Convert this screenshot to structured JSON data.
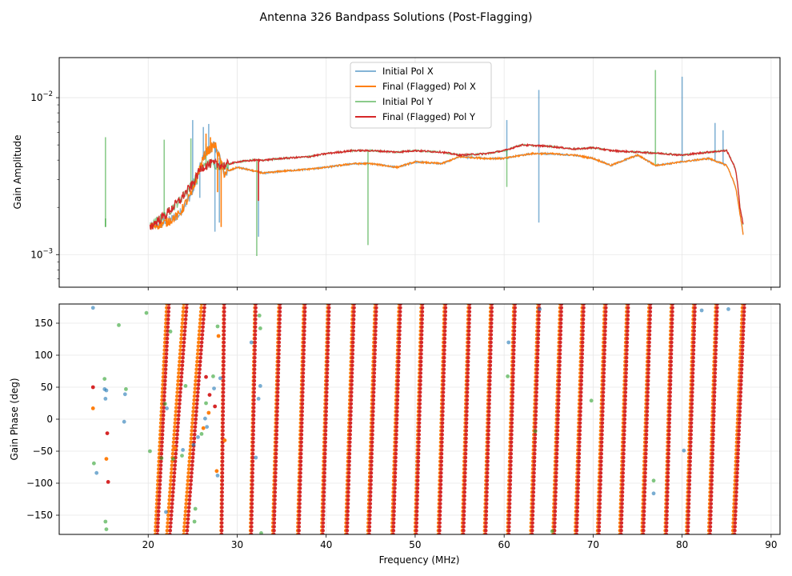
{
  "figure": {
    "title": "Antenna 326 Bandpass Solutions (Post-Flagging)"
  },
  "chart_data": [
    {
      "type": "line",
      "panel": "amplitude",
      "ylabel": "Gain Amplitude",
      "xlabel": "",
      "xlim": [
        10,
        91
      ],
      "yscale": "log",
      "ylim": [
        0.00062,
        0.018
      ],
      "grid": true,
      "x_ticks": [
        20,
        30,
        40,
        50,
        60,
        70,
        80,
        90
      ],
      "y_tick_labels": [
        "10^-2",
        "10^-3"
      ],
      "y_ticks": [
        0.01,
        0.001
      ],
      "legend": {
        "position": "top-center",
        "entries": [
          "Initial Pol X",
          "Final (Flagged) Pol X",
          "Initial Pol Y",
          "Final (Flagged) Pol Y"
        ]
      },
      "series": [
        {
          "name": "Initial Pol X",
          "color": "#1f77b4",
          "alpha": 0.55,
          "x": [
            20.2,
            22,
            23.5,
            25,
            26.5,
            27.5,
            28.5,
            30,
            32,
            33,
            35,
            38,
            40,
            43,
            45,
            48,
            50,
            53,
            55,
            58,
            60,
            63,
            65,
            68,
            70,
            72,
            73,
            75,
            77,
            80,
            83,
            85,
            86,
            86.5,
            86.9
          ],
          "values": [
            0.0015,
            0.0016,
            0.0018,
            0.0025,
            0.0045,
            0.005,
            0.0033,
            0.0036,
            0.0034,
            0.0033,
            0.0034,
            0.0035,
            0.0036,
            0.0038,
            0.0038,
            0.0036,
            0.0039,
            0.0038,
            0.0042,
            0.0041,
            0.0041,
            0.0044,
            0.0044,
            0.0043,
            0.0041,
            0.0037,
            0.0039,
            0.0043,
            0.0037,
            0.0039,
            0.0041,
            0.0037,
            0.0027,
            0.0018,
            0.0013
          ],
          "spikes": [
            [
              25.0,
              0.0072
            ],
            [
              25.8,
              0.0023
            ],
            [
              26.2,
              0.0065
            ],
            [
              26.8,
              0.0068
            ],
            [
              27.5,
              0.0014
            ],
            [
              28.0,
              0.0016
            ],
            [
              32.4,
              0.0013
            ],
            [
              60.3,
              0.0072
            ],
            [
              63.9,
              0.0112
            ],
            [
              63.9,
              0.0016
            ],
            [
              80.0,
              0.0136
            ],
            [
              83.7,
              0.0069
            ],
            [
              84.6,
              0.0062
            ]
          ]
        },
        {
          "name": "Final (Flagged) Pol X",
          "color": "#ff7f0e",
          "alpha": 1,
          "x": [
            20.2,
            22,
            23.5,
            25,
            26.5,
            27.5,
            28.5,
            30,
            32,
            33,
            35,
            38,
            40,
            43,
            45,
            48,
            50,
            53,
            55,
            58,
            60,
            63,
            65,
            68,
            70,
            72,
            73,
            75,
            77,
            80,
            83,
            85,
            86,
            86.5,
            86.9
          ],
          "values": [
            0.0015,
            0.0016,
            0.0018,
            0.0025,
            0.0045,
            0.005,
            0.0033,
            0.0036,
            0.0034,
            0.0033,
            0.0034,
            0.0035,
            0.0036,
            0.0038,
            0.0038,
            0.0036,
            0.0039,
            0.0038,
            0.0042,
            0.0041,
            0.0041,
            0.0044,
            0.0044,
            0.0043,
            0.0041,
            0.0037,
            0.0039,
            0.0043,
            0.0037,
            0.0039,
            0.0041,
            0.0037,
            0.0027,
            0.0018,
            0.0013
          ],
          "spikes": [
            [
              26.5,
              0.0059
            ],
            [
              27.0,
              0.0056
            ],
            [
              27.8,
              0.0025
            ],
            [
              28.2,
              0.0015
            ]
          ]
        },
        {
          "name": "Initial Pol Y",
          "color": "#2ca02c",
          "alpha": 0.55,
          "x": [
            20.2,
            22,
            23.5,
            25,
            26,
            27,
            28.5,
            30,
            32,
            33,
            35,
            38,
            40,
            43,
            45,
            48,
            50,
            53,
            55,
            58,
            60,
            62,
            65,
            68,
            70,
            72,
            75,
            78,
            80,
            83,
            85,
            86,
            86.5,
            86.9
          ],
          "values": [
            0.0015,
            0.0018,
            0.0022,
            0.0028,
            0.0036,
            0.0038,
            0.0037,
            0.0039,
            0.004,
            0.004,
            0.0041,
            0.0042,
            0.0044,
            0.0046,
            0.0046,
            0.0045,
            0.0046,
            0.0045,
            0.0043,
            0.0044,
            0.0046,
            0.005,
            0.0049,
            0.0047,
            0.0048,
            0.0046,
            0.0045,
            0.0044,
            0.0043,
            0.0045,
            0.0046,
            0.0035,
            0.002,
            0.0015
          ],
          "spikes": [
            [
              15.2,
              0.0056
            ],
            [
              15.2,
              0.0017
            ],
            [
              21.8,
              0.0054
            ],
            [
              24.8,
              0.0055
            ],
            [
              25.5,
              0.0028
            ],
            [
              26.5,
              0.0051
            ],
            [
              32.2,
              0.00098
            ],
            [
              44.7,
              0.00115
            ],
            [
              60.3,
              0.0027
            ],
            [
              77.0,
              0.015
            ],
            [
              77.0,
              0.0037
            ]
          ]
        },
        {
          "name": "Final (Flagged) Pol Y",
          "color": "#d62728",
          "alpha": 1,
          "x": [
            20.2,
            22,
            23.5,
            25,
            26,
            27,
            28.5,
            30,
            32,
            33,
            35,
            38,
            40,
            43,
            45,
            48,
            50,
            53,
            55,
            58,
            60,
            62,
            65,
            68,
            70,
            72,
            75,
            78,
            80,
            83,
            85,
            86,
            86.5,
            86.9
          ],
          "values": [
            0.0015,
            0.0018,
            0.0022,
            0.0028,
            0.0036,
            0.0038,
            0.0037,
            0.0039,
            0.004,
            0.004,
            0.0041,
            0.0042,
            0.0044,
            0.0046,
            0.0046,
            0.0045,
            0.0046,
            0.0045,
            0.0043,
            0.0044,
            0.0046,
            0.005,
            0.0049,
            0.0047,
            0.0048,
            0.0046,
            0.0045,
            0.0044,
            0.0043,
            0.0045,
            0.0046,
            0.0035,
            0.002,
            0.0015
          ],
          "spikes": [
            [
              32.4,
              0.0022
            ]
          ]
        }
      ]
    },
    {
      "type": "scatter",
      "panel": "phase",
      "ylabel": "Gain Phase (deg)",
      "xlabel": "Frequency (MHz)",
      "xlim": [
        10,
        91
      ],
      "ylim": [
        -180,
        180
      ],
      "grid": true,
      "x_ticks": [
        20,
        30,
        40,
        50,
        60,
        70,
        80,
        90
      ],
      "y_ticks": [
        150,
        100,
        50,
        0,
        -50,
        -100,
        -150
      ],
      "phase_wrap_start_MHz": [
        20.8,
        22.1,
        24.0,
        28.2,
        31.5,
        34.0,
        36.8,
        39.5,
        42.2,
        44.7,
        47.4,
        50.0,
        52.6,
        55.3,
        57.8,
        60.4,
        63.0,
        65.5,
        68.0,
        70.5,
        73.0,
        75.5,
        78.1,
        80.5,
        83.0,
        85.7
      ],
      "phase_wrap_end_MHz": [
        22.1,
        24.0,
        26.0,
        28.5,
        32.0,
        34.7,
        37.5,
        40.2,
        43.0,
        45.5,
        48.2,
        50.7,
        53.3,
        56.0,
        58.5,
        61.1,
        63.8,
        66.3,
        68.8,
        71.3,
        73.8,
        76.3,
        78.8,
        81.3,
        83.8,
        86.8
      ],
      "series": [
        {
          "name": "Initial Pol X",
          "color": "#1f77b4",
          "alpha": 0.6,
          "points": [
            [
              13.8,
              174
            ],
            [
              14.2,
              -84
            ],
            [
              15.1,
              47
            ],
            [
              15.2,
              32
            ],
            [
              15.3,
              45
            ],
            [
              17.3,
              -4
            ],
            [
              17.4,
              39
            ],
            [
              22.0,
              -145
            ],
            [
              22.1,
              17
            ],
            [
              23.9,
              -48
            ],
            [
              25.1,
              -40
            ],
            [
              25.6,
              -28
            ],
            [
              26.4,
              1
            ],
            [
              26.6,
              -12
            ],
            [
              27.4,
              48
            ],
            [
              27.8,
              -88
            ],
            [
              28.1,
              64
            ],
            [
              31.6,
              120
            ],
            [
              32.1,
              -60
            ],
            [
              32.4,
              32
            ],
            [
              32.6,
              52
            ],
            [
              64.0,
              172
            ],
            [
              60.5,
              120
            ],
            [
              80.2,
              -49
            ],
            [
              82.2,
              170
            ],
            [
              85.2,
              172
            ],
            [
              76.8,
              -116
            ]
          ]
        },
        {
          "name": "Final (Flagged) Pol X",
          "color": "#ff7f0e",
          "alpha": 1,
          "points": [
            [
              13.8,
              17
            ],
            [
              15.3,
              -62
            ],
            [
              23.0,
              -45
            ],
            [
              26.2,
              -14
            ],
            [
              27.7,
              -81
            ],
            [
              28.6,
              -33
            ],
            [
              27.9,
              130
            ],
            [
              26.8,
              10
            ]
          ]
        },
        {
          "name": "Initial Pol Y",
          "color": "#2ca02c",
          "alpha": 0.6,
          "points": [
            [
              13.9,
              -69
            ],
            [
              15.1,
              63
            ],
            [
              15.2,
              -160
            ],
            [
              15.3,
              -172
            ],
            [
              16.7,
              147
            ],
            [
              17.5,
              47
            ],
            [
              19.8,
              166
            ],
            [
              20.2,
              -50
            ],
            [
              21.5,
              -61
            ],
            [
              21.9,
              24
            ],
            [
              22.5,
              137
            ],
            [
              22.8,
              -62
            ],
            [
              23.8,
              -57
            ],
            [
              24.2,
              52
            ],
            [
              25.2,
              -160
            ],
            [
              25.3,
              -140
            ],
            [
              26.0,
              -23
            ],
            [
              26.5,
              25
            ],
            [
              27.3,
              67
            ],
            [
              27.8,
              145
            ],
            [
              32.5,
              162
            ],
            [
              32.6,
              142
            ],
            [
              32.7,
              -178
            ],
            [
              60.4,
              67
            ],
            [
              63.5,
              -19
            ],
            [
              65.4,
              -175
            ],
            [
              76.8,
              -96
            ],
            [
              69.8,
              29
            ]
          ]
        },
        {
          "name": "Final (Flagged) Pol Y",
          "color": "#d62728",
          "alpha": 1,
          "points": [
            [
              13.8,
              50
            ],
            [
              15.4,
              -22
            ],
            [
              15.5,
              -98
            ],
            [
              26.5,
              66
            ],
            [
              26.9,
              38
            ],
            [
              27.5,
              20
            ]
          ]
        }
      ]
    }
  ]
}
